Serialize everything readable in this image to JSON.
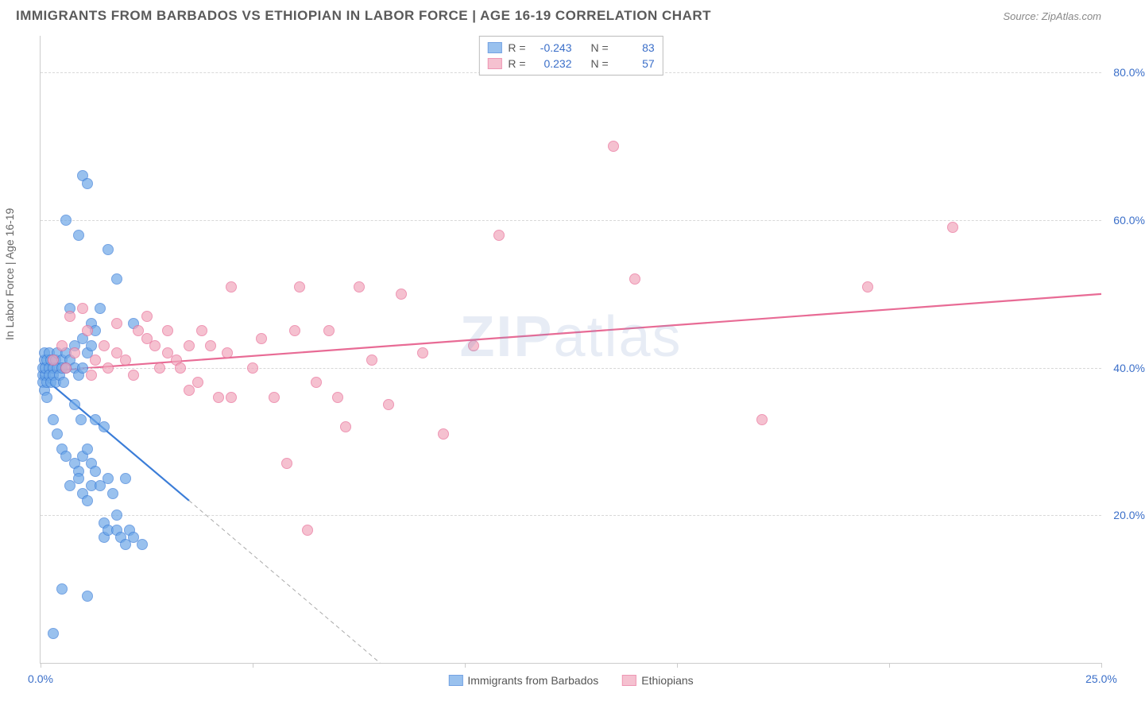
{
  "header": {
    "title": "IMMIGRANTS FROM BARBADOS VS ETHIOPIAN IN LABOR FORCE | AGE 16-19 CORRELATION CHART",
    "source": "Source: ZipAtlas.com"
  },
  "ylabel": "In Labor Force | Age 16-19",
  "watermark_a": "ZIP",
  "watermark_b": "atlas",
  "chart": {
    "type": "scatter",
    "xlim": [
      0,
      25
    ],
    "ylim": [
      0,
      85
    ],
    "xticks": [
      0,
      5,
      10,
      15,
      20,
      25
    ],
    "xtick_labels": [
      "0.0%",
      "",
      "",
      "",
      "",
      "25.0%"
    ],
    "yticks": [
      20,
      40,
      60,
      80
    ],
    "ytick_labels": [
      "20.0%",
      "40.0%",
      "60.0%",
      "80.0%"
    ],
    "grid_color": "#d8d8d8",
    "background_color": "#ffffff",
    "marker_radius": 7,
    "marker_stroke_width": 1.2,
    "marker_fill_opacity": 0.35
  },
  "series": [
    {
      "name": "Immigrants from Barbados",
      "color": "#6ea8e8",
      "stroke": "#3b7dd8",
      "r_value": "-0.243",
      "n_value": "83",
      "trend": {
        "x1": 0,
        "y1": 39,
        "x2": 3.5,
        "y2": 22,
        "width": 2.2
      },
      "trend_ext": {
        "x1": 3.5,
        "y1": 22,
        "x2": 8.0,
        "y2": 0
      },
      "points": [
        [
          0.05,
          39
        ],
        [
          0.05,
          40
        ],
        [
          0.05,
          38
        ],
        [
          0.1,
          41
        ],
        [
          0.1,
          37
        ],
        [
          0.1,
          42
        ],
        [
          0.12,
          39
        ],
        [
          0.12,
          40
        ],
        [
          0.15,
          38
        ],
        [
          0.15,
          41
        ],
        [
          0.15,
          36
        ],
        [
          0.2,
          40
        ],
        [
          0.2,
          39
        ],
        [
          0.2,
          42
        ],
        [
          0.25,
          41
        ],
        [
          0.25,
          38
        ],
        [
          0.3,
          40
        ],
        [
          0.3,
          39
        ],
        [
          0.35,
          41
        ],
        [
          0.35,
          38
        ],
        [
          0.4,
          40
        ],
        [
          0.4,
          42
        ],
        [
          0.45,
          39
        ],
        [
          0.5,
          41
        ],
        [
          0.5,
          40
        ],
        [
          0.55,
          38
        ],
        [
          0.6,
          40
        ],
        [
          0.6,
          42
        ],
        [
          0.7,
          41
        ],
        [
          0.8,
          43
        ],
        [
          0.8,
          40
        ],
        [
          0.9,
          39
        ],
        [
          1.0,
          44
        ],
        [
          1.0,
          40
        ],
        [
          1.1,
          42
        ],
        [
          1.2,
          46
        ],
        [
          1.2,
          43
        ],
        [
          1.3,
          45
        ],
        [
          1.4,
          48
        ],
        [
          1.5,
          32
        ],
        [
          0.6,
          60
        ],
        [
          0.9,
          58
        ],
        [
          1.0,
          66
        ],
        [
          1.1,
          65
        ],
        [
          1.6,
          56
        ],
        [
          1.8,
          52
        ],
        [
          2.2,
          46
        ],
        [
          0.3,
          33
        ],
        [
          0.4,
          31
        ],
        [
          0.5,
          29
        ],
        [
          0.6,
          28
        ],
        [
          0.7,
          24
        ],
        [
          0.8,
          27
        ],
        [
          0.9,
          26
        ],
        [
          0.9,
          25
        ],
        [
          1.0,
          23
        ],
        [
          1.0,
          28
        ],
        [
          1.1,
          22
        ],
        [
          1.1,
          29
        ],
        [
          1.2,
          24
        ],
        [
          1.2,
          27
        ],
        [
          1.3,
          26
        ],
        [
          1.4,
          24
        ],
        [
          1.5,
          19
        ],
        [
          1.5,
          17
        ],
        [
          1.6,
          18
        ],
        [
          1.6,
          25
        ],
        [
          1.7,
          23
        ],
        [
          1.8,
          18
        ],
        [
          1.8,
          20
        ],
        [
          1.9,
          17
        ],
        [
          2.0,
          25
        ],
        [
          2.0,
          16
        ],
        [
          2.1,
          18
        ],
        [
          2.2,
          17
        ],
        [
          2.4,
          16
        ],
        [
          0.5,
          10
        ],
        [
          1.1,
          9
        ],
        [
          0.3,
          4
        ],
        [
          1.3,
          33
        ],
        [
          0.8,
          35
        ],
        [
          0.95,
          33
        ],
        [
          0.7,
          48
        ]
      ]
    },
    {
      "name": "Ethiopians",
      "color": "#f2a8bd",
      "stroke": "#e86b95",
      "r_value": "0.232",
      "n_value": "57",
      "trend": {
        "x1": 0,
        "y1": 39.5,
        "x2": 25,
        "y2": 50,
        "width": 2.2
      },
      "points": [
        [
          0.3,
          41
        ],
        [
          0.5,
          43
        ],
        [
          0.6,
          40
        ],
        [
          0.7,
          47
        ],
        [
          0.8,
          42
        ],
        [
          1.0,
          48
        ],
        [
          1.1,
          45
        ],
        [
          1.2,
          39
        ],
        [
          1.3,
          41
        ],
        [
          1.5,
          43
        ],
        [
          1.6,
          40
        ],
        [
          1.8,
          42
        ],
        [
          1.8,
          46
        ],
        [
          2.0,
          41
        ],
        [
          2.2,
          39
        ],
        [
          2.3,
          45
        ],
        [
          2.5,
          47
        ],
        [
          2.5,
          44
        ],
        [
          2.7,
          43
        ],
        [
          2.8,
          40
        ],
        [
          3.0,
          45
        ],
        [
          3.0,
          42
        ],
        [
          3.2,
          41
        ],
        [
          3.3,
          40
        ],
        [
          3.5,
          43
        ],
        [
          3.5,
          37
        ],
        [
          3.7,
          38
        ],
        [
          3.8,
          45
        ],
        [
          4.0,
          43
        ],
        [
          4.2,
          36
        ],
        [
          4.4,
          42
        ],
        [
          4.5,
          36
        ],
        [
          4.5,
          51
        ],
        [
          5.0,
          40
        ],
        [
          5.2,
          44
        ],
        [
          5.5,
          36
        ],
        [
          5.8,
          27
        ],
        [
          6.0,
          45
        ],
        [
          6.1,
          51
        ],
        [
          6.5,
          38
        ],
        [
          6.8,
          45
        ],
        [
          7.0,
          36
        ],
        [
          7.2,
          32
        ],
        [
          7.5,
          51
        ],
        [
          7.8,
          41
        ],
        [
          8.2,
          35
        ],
        [
          8.5,
          50
        ],
        [
          9.0,
          42
        ],
        [
          9.5,
          31
        ],
        [
          10.2,
          43
        ],
        [
          10.8,
          58
        ],
        [
          13.5,
          70
        ],
        [
          14.0,
          52
        ],
        [
          17.0,
          33
        ],
        [
          19.5,
          51
        ],
        [
          21.5,
          59
        ],
        [
          6.3,
          18
        ]
      ]
    }
  ],
  "legend_top": {
    "r_label": "R =",
    "n_label": "N ="
  },
  "legend_bottom": {
    "items": [
      "Immigrants from Barbados",
      "Ethiopians"
    ]
  }
}
